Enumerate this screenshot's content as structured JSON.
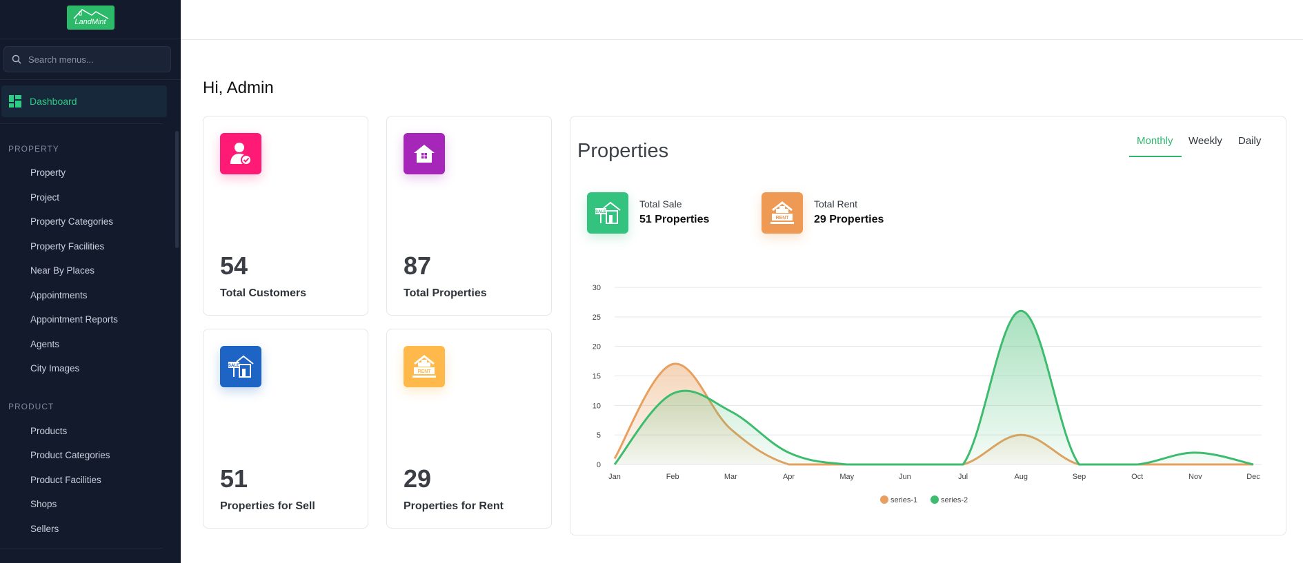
{
  "app": {
    "logo_text": "LandMint"
  },
  "sidebar": {
    "search_placeholder": "Search menus...",
    "active_item": "Dashboard",
    "sections": [
      {
        "title": "PROPERTY",
        "items": [
          "Property",
          "Project",
          "Property Categories",
          "Property Facilities",
          "Near By Places",
          "Appointments",
          "Appointment Reports",
          "Agents",
          "City Images"
        ]
      },
      {
        "title": "PRODUCT",
        "items": [
          "Products",
          "Product Categories",
          "Product Facilities",
          "Shops",
          "Sellers"
        ]
      }
    ]
  },
  "main": {
    "greeting": "Hi, Admin",
    "stats": [
      {
        "value": "54",
        "label": "Total Customers",
        "icon": "customer-icon",
        "color": "#ff1a75"
      },
      {
        "value": "87",
        "label": "Total Properties",
        "icon": "house-icon",
        "color": "#a526b9"
      },
      {
        "value": "51",
        "label": "Properties for Sell",
        "icon": "sale-house-icon",
        "color": "#1d64c4"
      },
      {
        "value": "29",
        "label": "Properties for Rent",
        "icon": "rent-house-icon",
        "color": "#ffb84a"
      }
    ],
    "properties_panel": {
      "title": "Properties",
      "tabs": [
        "Monthly",
        "Weekly",
        "Daily"
      ],
      "active_tab": "Monthly",
      "summary": [
        {
          "label": "Total Sale",
          "value": "51 Properties",
          "icon": "sale-house-icon",
          "color": "#33c37f"
        },
        {
          "label": "Total Rent",
          "value": "29 Properties",
          "icon": "rent-house-icon",
          "color": "#ee9a55"
        }
      ]
    }
  },
  "chart_data": {
    "type": "area",
    "categories": [
      "Jan",
      "Feb",
      "Mar",
      "Apr",
      "May",
      "Jun",
      "Jul",
      "Aug",
      "Sep",
      "Oct",
      "Nov",
      "Dec"
    ],
    "ylim": [
      0,
      30
    ],
    "yticks": [
      0,
      5,
      10,
      15,
      20,
      25,
      30
    ],
    "series": [
      {
        "name": "series-1",
        "color": "#e8a060",
        "values": [
          1,
          17,
          6,
          0,
          0,
          0,
          0,
          5,
          0,
          0,
          0,
          0
        ]
      },
      {
        "name": "series-2",
        "color": "#3dbb6e",
        "values": [
          0,
          12,
          9,
          2,
          0,
          0,
          0,
          26,
          0,
          0,
          2,
          0
        ]
      }
    ],
    "legend": "bottom-center",
    "grid": true
  }
}
